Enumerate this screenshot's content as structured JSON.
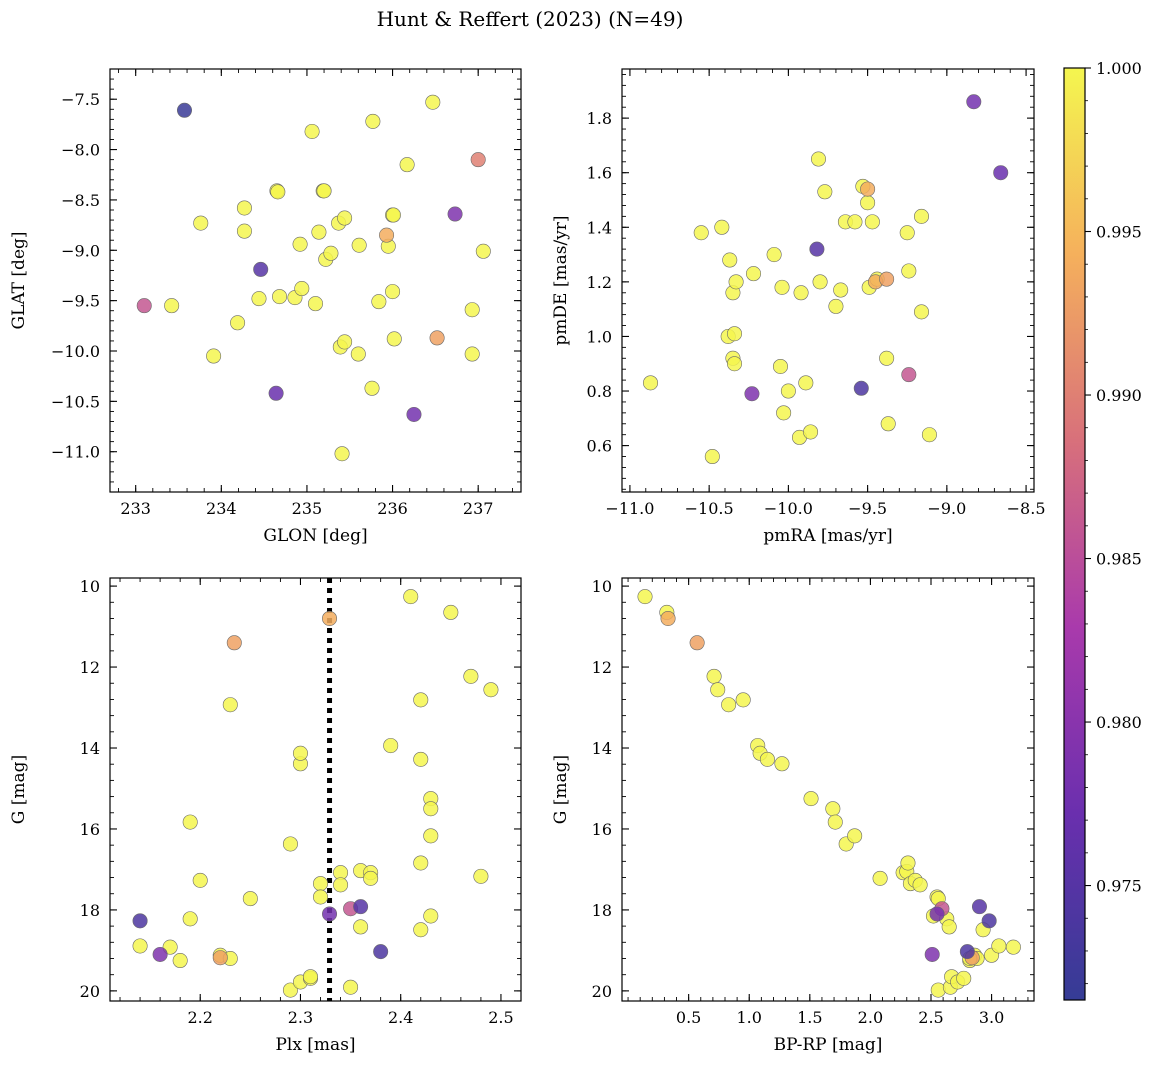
{
  "figure": {
    "title": "Hunt & Reffert (2023) (N=49)"
  },
  "colorbar": {
    "min": 0.9715,
    "max": 1.0,
    "ticks": [
      "0.975",
      "0.980",
      "0.985",
      "0.990",
      "0.995",
      "1.000"
    ],
    "tick_values": [
      0.975,
      0.98,
      0.985,
      0.99,
      0.995,
      1.0
    ],
    "colormap": "plasma"
  },
  "chart_data": [
    {
      "type": "scatter",
      "xlabel": "GLON [deg]",
      "ylabel": "GLAT [deg]",
      "xlim": [
        232.7,
        237.5
      ],
      "ylim": [
        -11.4,
        -7.2
      ],
      "invert_y": false,
      "xticks": [
        233,
        234,
        235,
        236,
        237
      ],
      "xtick_labels": [
        "233",
        "234",
        "235",
        "236",
        "237"
      ],
      "yticks": [
        -7.5,
        -8.0,
        -8.5,
        -9.0,
        -9.5,
        -10.0,
        -10.5,
        -11.0
      ],
      "ytick_labels": [
        "−7.5",
        "−8.0",
        "−8.5",
        "−9.0",
        "−9.5",
        "−10.0",
        "−10.5",
        "−11.0"
      ],
      "points": [
        [
          233.1,
          -9.55,
          0.986
        ],
        [
          233.42,
          -9.55,
          1.0
        ],
        [
          233.57,
          -7.61,
          0.972
        ],
        [
          233.76,
          -8.73,
          1.0
        ],
        [
          233.91,
          -10.05,
          1.0
        ],
        [
          234.19,
          -9.72,
          1.0
        ],
        [
          234.27,
          -8.58,
          1.0
        ],
        [
          234.27,
          -8.81,
          1.0
        ],
        [
          234.44,
          -9.48,
          1.0
        ],
        [
          234.46,
          -9.19,
          0.975
        ],
        [
          234.64,
          -10.42,
          0.977
        ],
        [
          234.65,
          -8.41,
          1.0
        ],
        [
          234.66,
          -8.42,
          1.0
        ],
        [
          234.68,
          -9.46,
          1.0
        ],
        [
          234.86,
          -9.47,
          1.0
        ],
        [
          234.92,
          -8.94,
          1.0
        ],
        [
          234.94,
          -9.38,
          1.0
        ],
        [
          235.06,
          -7.82,
          1.0
        ],
        [
          235.1,
          -9.53,
          1.0
        ],
        [
          235.14,
          -8.82,
          1.0
        ],
        [
          235.19,
          -8.41,
          1.0
        ],
        [
          235.2,
          -8.41,
          1.0
        ],
        [
          235.22,
          -9.09,
          1.0
        ],
        [
          235.28,
          -9.03,
          1.0
        ],
        [
          235.37,
          -8.73,
          1.0
        ],
        [
          235.39,
          -9.96,
          1.0
        ],
        [
          235.41,
          -11.02,
          1.0
        ],
        [
          235.44,
          -8.68,
          1.0
        ],
        [
          235.44,
          -9.91,
          1.0
        ],
        [
          235.6,
          -10.03,
          1.0
        ],
        [
          235.61,
          -8.95,
          1.0
        ],
        [
          235.76,
          -10.37,
          1.0
        ],
        [
          235.77,
          -7.72,
          1.0
        ],
        [
          235.84,
          -9.51,
          1.0
        ],
        [
          235.93,
          -8.85,
          0.994
        ],
        [
          235.95,
          -8.96,
          1.0
        ],
        [
          236.0,
          -8.65,
          1.0
        ],
        [
          236.0,
          -9.41,
          1.0
        ],
        [
          236.01,
          -8.65,
          1.0
        ],
        [
          236.02,
          -9.88,
          1.0
        ],
        [
          236.17,
          -8.15,
          1.0
        ],
        [
          236.25,
          -10.63,
          0.978
        ],
        [
          236.47,
          -7.53,
          1.0
        ],
        [
          236.52,
          -9.87,
          0.993
        ],
        [
          236.73,
          -8.64,
          0.979
        ],
        [
          236.93,
          -9.59,
          1.0
        ],
        [
          236.93,
          -10.03,
          1.0
        ],
        [
          237.0,
          -8.1,
          0.99
        ],
        [
          237.06,
          -9.01,
          1.0
        ]
      ]
    },
    {
      "type": "scatter",
      "xlabel": "pmRA [mas/yr]",
      "ylabel": "pmDE [mas/yr]",
      "xlim": [
        -11.05,
        -8.45
      ],
      "ylim": [
        0.43,
        1.98
      ],
      "invert_y": false,
      "xticks": [
        -11.0,
        -10.5,
        -10.0,
        -9.5,
        -9.0,
        -8.5
      ],
      "xtick_labels": [
        "−11.0",
        "−10.5",
        "−10.0",
        "−9.5",
        "−9.0",
        "−8.5"
      ],
      "yticks": [
        0.6,
        0.8,
        1.0,
        1.2,
        1.4,
        1.6,
        1.8
      ],
      "ytick_labels": [
        "0.6",
        "0.8",
        "1.0",
        "1.2",
        "1.4",
        "1.6",
        "1.8"
      ],
      "points": [
        [
          -10.87,
          0.83,
          1.0
        ],
        [
          -10.55,
          1.38,
          1.0
        ],
        [
          -10.48,
          0.56,
          1.0
        ],
        [
          -10.42,
          1.4,
          1.0
        ],
        [
          -10.38,
          1.0,
          1.0
        ],
        [
          -10.37,
          1.28,
          1.0
        ],
        [
          -10.35,
          1.16,
          1.0
        ],
        [
          -10.35,
          0.92,
          1.0
        ],
        [
          -10.34,
          0.9,
          1.0
        ],
        [
          -10.34,
          1.01,
          1.0
        ],
        [
          -10.33,
          1.2,
          1.0
        ],
        [
          -10.23,
          0.79,
          0.979
        ],
        [
          -10.22,
          1.23,
          1.0
        ],
        [
          -10.09,
          1.3,
          1.0
        ],
        [
          -10.05,
          0.89,
          1.0
        ],
        [
          -10.04,
          1.18,
          1.0
        ],
        [
          -10.03,
          0.72,
          1.0
        ],
        [
          -10.0,
          0.8,
          1.0
        ],
        [
          -9.93,
          0.63,
          1.0
        ],
        [
          -9.92,
          1.16,
          1.0
        ],
        [
          -9.89,
          0.83,
          1.0
        ],
        [
          -9.86,
          0.65,
          1.0
        ],
        [
          -9.82,
          1.32,
          0.975
        ],
        [
          -9.81,
          1.65,
          1.0
        ],
        [
          -9.8,
          1.2,
          1.0
        ],
        [
          -9.77,
          1.53,
          1.0
        ],
        [
          -9.7,
          1.11,
          1.0
        ],
        [
          -9.67,
          1.17,
          1.0
        ],
        [
          -9.64,
          1.42,
          1.0
        ],
        [
          -9.58,
          1.42,
          1.0
        ],
        [
          -9.54,
          0.81,
          0.974
        ],
        [
          -9.53,
          1.55,
          1.0
        ],
        [
          -9.5,
          1.54,
          0.994
        ],
        [
          -9.5,
          1.49,
          1.0
        ],
        [
          -9.49,
          1.18,
          1.0
        ],
        [
          -9.47,
          1.42,
          1.0
        ],
        [
          -9.45,
          1.2,
          0.994
        ],
        [
          -9.44,
          1.21,
          1.0
        ],
        [
          -9.38,
          1.21,
          0.993
        ],
        [
          -9.38,
          0.92,
          1.0
        ],
        [
          -9.37,
          0.68,
          1.0
        ],
        [
          -9.25,
          1.38,
          1.0
        ],
        [
          -9.24,
          1.24,
          1.0
        ],
        [
          -9.24,
          0.86,
          0.986
        ],
        [
          -9.16,
          1.44,
          1.0
        ],
        [
          -9.16,
          1.09,
          1.0
        ],
        [
          -9.11,
          0.64,
          1.0
        ],
        [
          -8.83,
          1.86,
          0.978
        ],
        [
          -8.66,
          1.6,
          0.977
        ]
      ]
    },
    {
      "type": "scatter",
      "xlabel": "Plx [mas]",
      "ylabel": "G [mag]",
      "xlim": [
        2.11,
        2.52
      ],
      "ylim": [
        9.8,
        20.25
      ],
      "invert_y": true,
      "xticks": [
        2.2,
        2.3,
        2.4,
        2.5
      ],
      "xtick_labels": [
        "2.2",
        "2.3",
        "2.4",
        "2.5"
      ],
      "yticks": [
        10,
        12,
        14,
        16,
        18,
        20
      ],
      "ytick_labels": [
        "10",
        "12",
        "14",
        "16",
        "18",
        "20"
      ],
      "vline": {
        "x": 2.329,
        "style": "dotted"
      },
      "points": [
        [
          2.14,
          18.27,
          0.974
        ],
        [
          2.14,
          18.89,
          1.0
        ],
        [
          2.16,
          19.1,
          0.979
        ],
        [
          2.17,
          18.92,
          1.0
        ],
        [
          2.18,
          19.25,
          1.0
        ],
        [
          2.19,
          18.22,
          1.0
        ],
        [
          2.19,
          15.83,
          1.0
        ],
        [
          2.2,
          17.27,
          1.0
        ],
        [
          2.22,
          19.18,
          0.993
        ],
        [
          2.22,
          19.12,
          1.0
        ],
        [
          2.23,
          19.2,
          1.0
        ],
        [
          2.23,
          12.93,
          1.0
        ],
        [
          2.234,
          11.4,
          0.993
        ],
        [
          2.25,
          17.72,
          1.0
        ],
        [
          2.29,
          19.98,
          1.0
        ],
        [
          2.29,
          16.37,
          1.0
        ],
        [
          2.3,
          19.78,
          1.0
        ],
        [
          2.3,
          14.39,
          1.0
        ],
        [
          2.3,
          14.13,
          1.0
        ],
        [
          2.31,
          19.69,
          1.0
        ],
        [
          2.31,
          19.65,
          1.0
        ],
        [
          2.32,
          17.35,
          1.0
        ],
        [
          2.32,
          17.68,
          1.0
        ],
        [
          2.329,
          18.1,
          0.978
        ],
        [
          2.329,
          10.8,
          0.994
        ],
        [
          2.34,
          17.08,
          1.0
        ],
        [
          2.34,
          17.38,
          1.0
        ],
        [
          2.35,
          19.91,
          1.0
        ],
        [
          2.35,
          17.97,
          0.986
        ],
        [
          2.36,
          17.92,
          0.975
        ],
        [
          2.36,
          17.03,
          1.0
        ],
        [
          2.36,
          18.42,
          1.0
        ],
        [
          2.37,
          17.08,
          1.0
        ],
        [
          2.37,
          17.22,
          1.0
        ],
        [
          2.38,
          19.03,
          0.974
        ],
        [
          2.39,
          13.94,
          1.0
        ],
        [
          2.41,
          10.26,
          1.0
        ],
        [
          2.42,
          12.81,
          1.0
        ],
        [
          2.42,
          18.49,
          1.0
        ],
        [
          2.42,
          16.84,
          1.0
        ],
        [
          2.42,
          14.28,
          1.0
        ],
        [
          2.43,
          18.15,
          1.0
        ],
        [
          2.43,
          15.25,
          1.0
        ],
        [
          2.43,
          15.5,
          1.0
        ],
        [
          2.43,
          16.17,
          1.0
        ],
        [
          2.45,
          10.65,
          1.0
        ],
        [
          2.47,
          12.23,
          1.0
        ],
        [
          2.48,
          17.17,
          1.0
        ],
        [
          2.49,
          12.56,
          1.0
        ]
      ]
    },
    {
      "type": "scatter",
      "xlabel": "BP-RP [mag]",
      "ylabel": "G [mag]",
      "xlim": [
        -0.05,
        3.35
      ],
      "ylim": [
        9.8,
        20.25
      ],
      "invert_y": true,
      "xticks": [
        0.5,
        1.0,
        1.5,
        2.0,
        2.5,
        3.0
      ],
      "xtick_labels": [
        "0.5",
        "1.0",
        "1.5",
        "2.0",
        "2.5",
        "3.0"
      ],
      "yticks": [
        10,
        12,
        14,
        16,
        18,
        20
      ],
      "ytick_labels": [
        "10",
        "12",
        "14",
        "16",
        "18",
        "20"
      ],
      "points": [
        [
          0.14,
          10.26,
          1.0
        ],
        [
          0.32,
          10.65,
          1.0
        ],
        [
          0.33,
          10.8,
          0.994
        ],
        [
          0.57,
          11.4,
          0.993
        ],
        [
          0.71,
          12.23,
          1.0
        ],
        [
          0.74,
          12.56,
          1.0
        ],
        [
          0.83,
          12.93,
          1.0
        ],
        [
          0.95,
          12.81,
          1.0
        ],
        [
          1.07,
          13.94,
          1.0
        ],
        [
          1.09,
          14.13,
          1.0
        ],
        [
          1.15,
          14.28,
          1.0
        ],
        [
          1.27,
          14.39,
          1.0
        ],
        [
          1.51,
          15.25,
          1.0
        ],
        [
          1.69,
          15.5,
          1.0
        ],
        [
          1.71,
          15.83,
          1.0
        ],
        [
          1.8,
          16.37,
          1.0
        ],
        [
          1.87,
          16.17,
          1.0
        ],
        [
          2.08,
          17.22,
          1.0
        ],
        [
          2.27,
          17.08,
          1.0
        ],
        [
          2.3,
          17.05,
          1.0
        ],
        [
          2.31,
          16.84,
          1.0
        ],
        [
          2.33,
          17.35,
          1.0
        ],
        [
          2.37,
          17.27,
          1.0
        ],
        [
          2.41,
          17.38,
          1.0
        ],
        [
          2.51,
          19.1,
          0.979
        ],
        [
          2.52,
          18.15,
          1.0
        ],
        [
          2.55,
          18.1,
          0.978
        ],
        [
          2.55,
          17.68,
          1.0
        ],
        [
          2.56,
          17.72,
          1.0
        ],
        [
          2.56,
          19.98,
          1.0
        ],
        [
          2.59,
          17.97,
          0.986
        ],
        [
          2.63,
          18.22,
          1.0
        ],
        [
          2.65,
          18.42,
          1.0
        ],
        [
          2.66,
          19.91,
          1.0
        ],
        [
          2.67,
          19.65,
          1.0
        ],
        [
          2.72,
          19.78,
          1.0
        ],
        [
          2.77,
          19.69,
          1.0
        ],
        [
          2.8,
          19.03,
          0.974
        ],
        [
          2.82,
          19.25,
          1.0
        ],
        [
          2.84,
          19.18,
          0.993
        ],
        [
          2.86,
          19.12,
          1.0
        ],
        [
          2.9,
          17.92,
          0.975
        ],
        [
          2.93,
          18.49,
          1.0
        ],
        [
          2.98,
          18.27,
          0.974
        ],
        [
          3.0,
          19.12,
          1.0
        ],
        [
          3.06,
          18.89,
          1.0
        ],
        [
          3.18,
          18.92,
          1.0
        ],
        [
          2.88,
          19.2,
          1.0
        ],
        [
          2.82,
          19.2,
          1.0
        ]
      ]
    }
  ]
}
